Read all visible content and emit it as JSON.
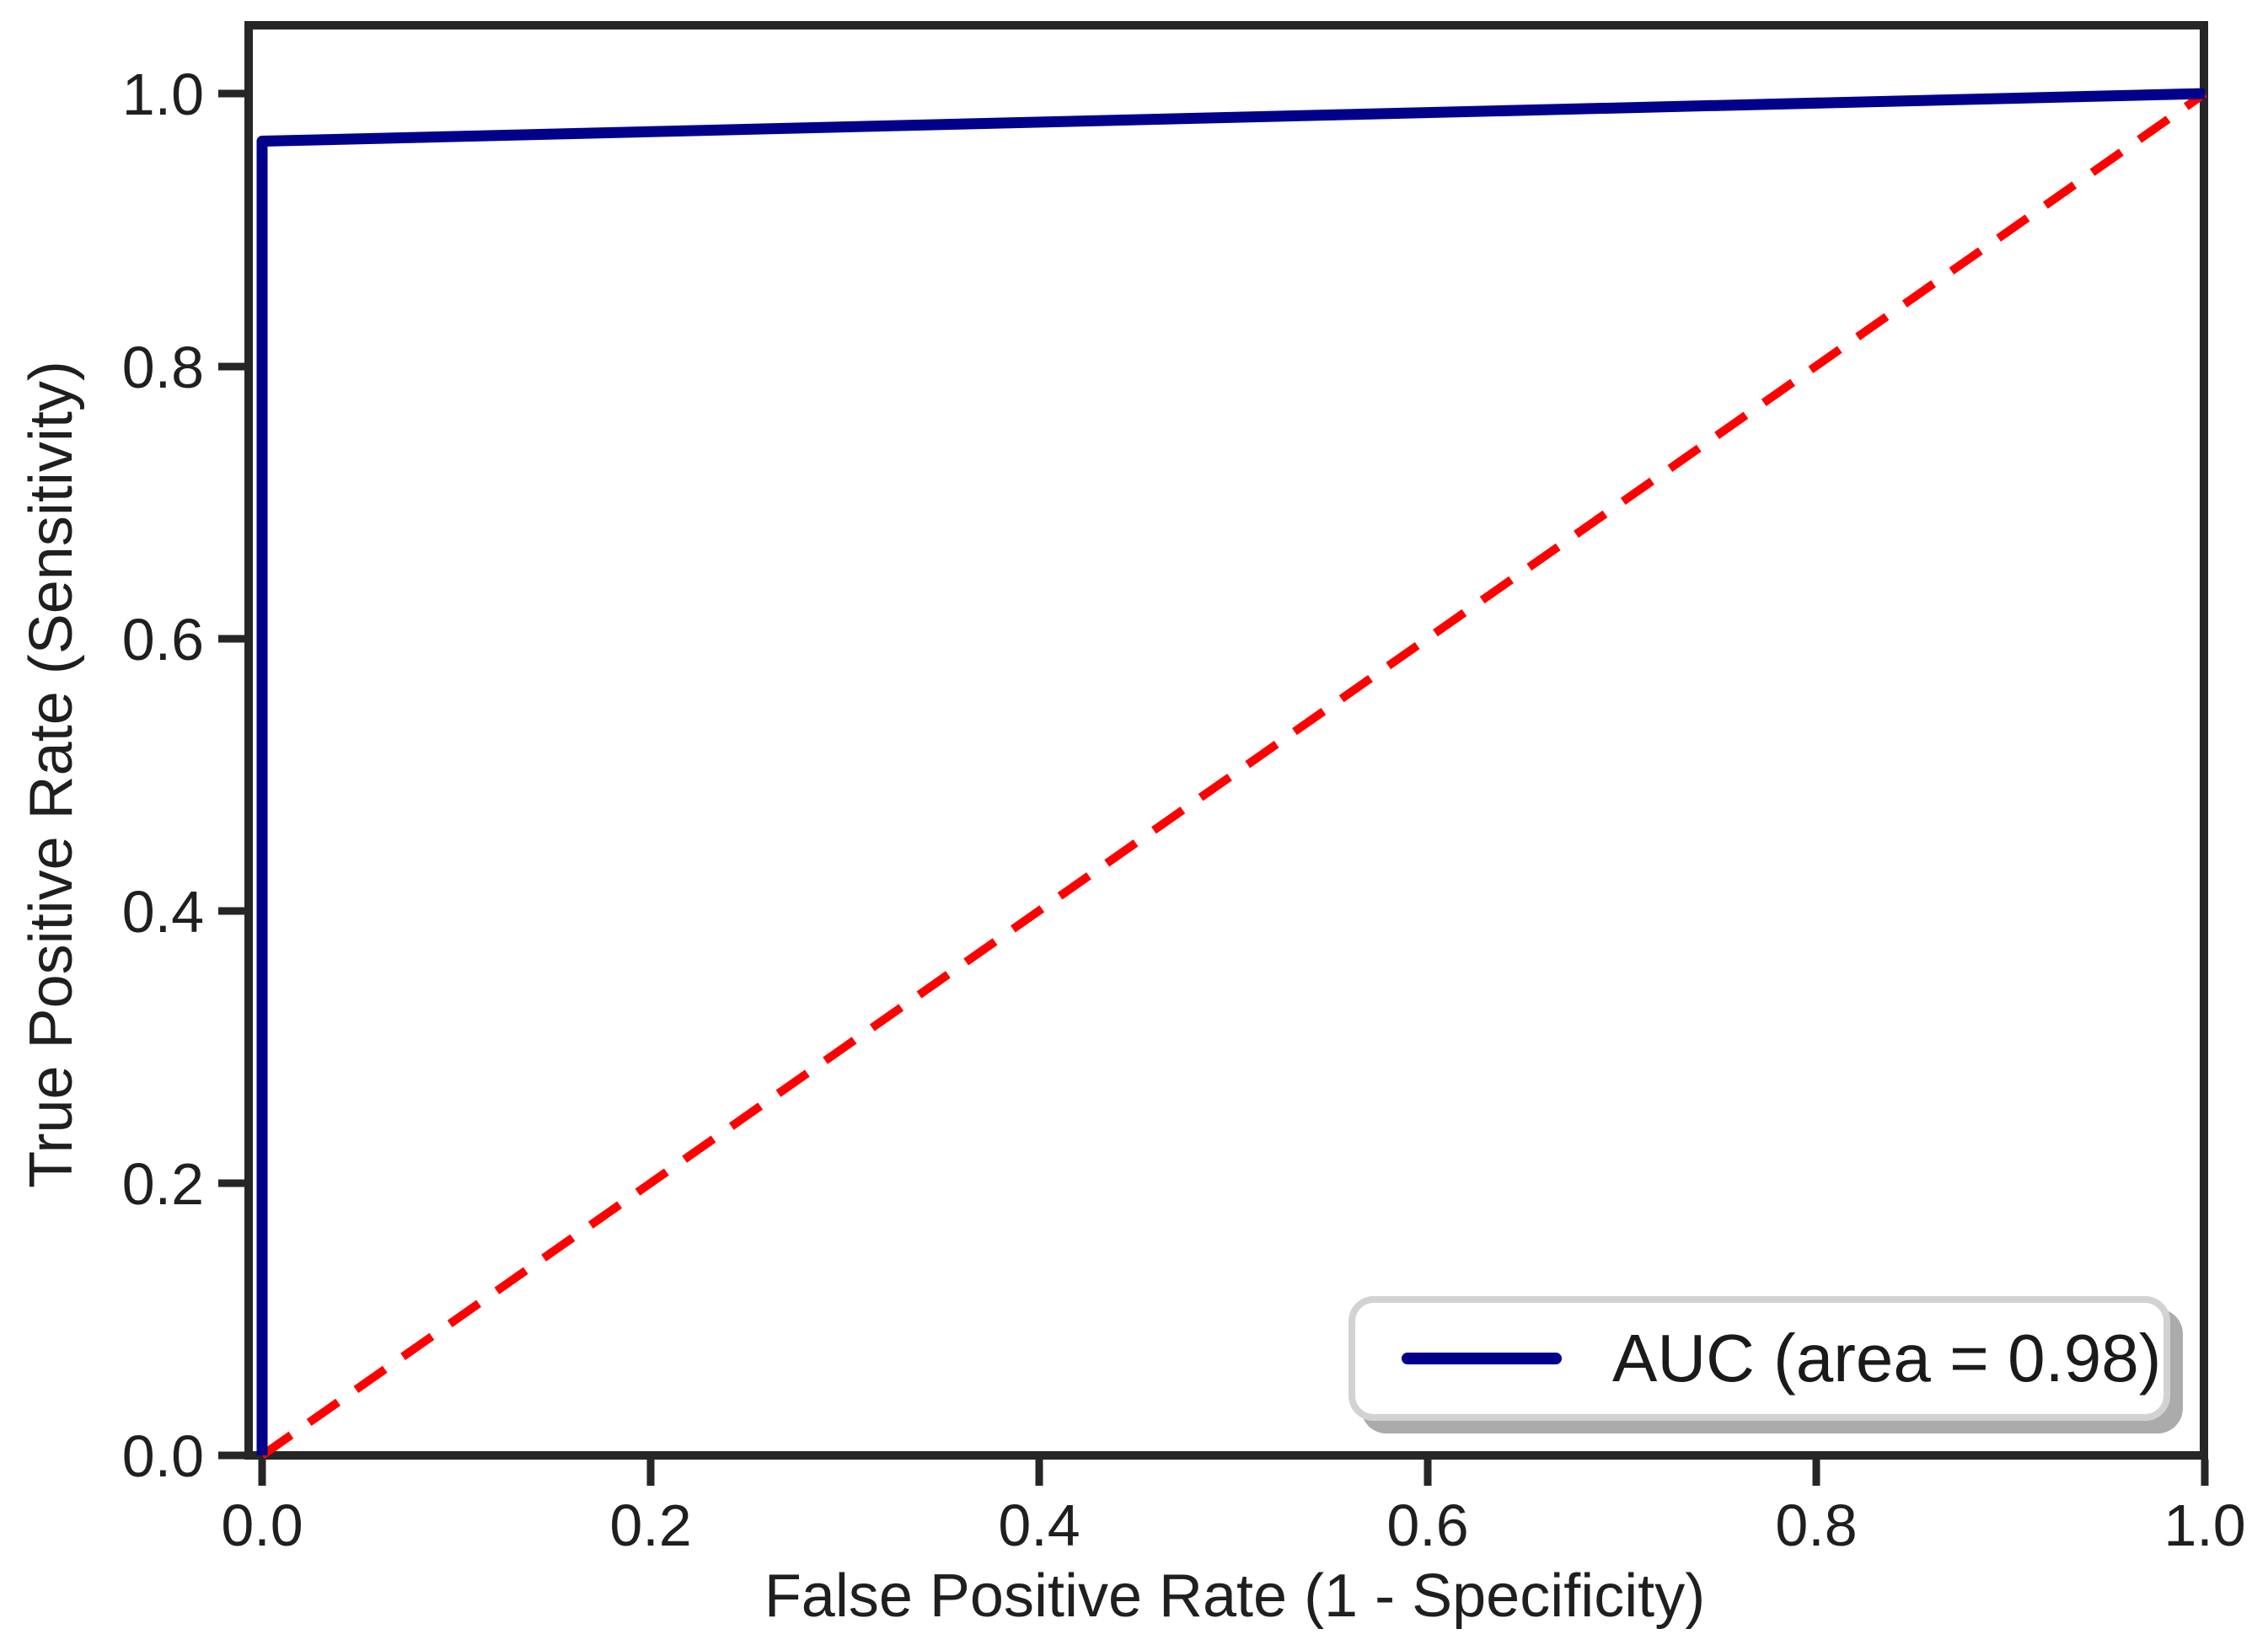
{
  "figure": {
    "background": "#ffffff",
    "spine_color": "#262626",
    "text_color": "#1f1f1f"
  },
  "chart_data": {
    "type": "line",
    "title": "",
    "xlabel": "False Positive Rate (1 - Specificity)",
    "ylabel": "True Positive Rate (Sensitivity)",
    "xlim": [
      -0.008,
      1.0
    ],
    "ylim": [
      0.0,
      1.05
    ],
    "grid": false,
    "xticks": [
      0.0,
      0.2,
      0.4,
      0.6,
      0.8,
      1.0
    ],
    "yticks": [
      0.0,
      0.2,
      0.4,
      0.6,
      0.8,
      1.0
    ],
    "xtick_labels": [
      "0.0",
      "0.2",
      "0.4",
      "0.6",
      "0.8",
      "1.0"
    ],
    "ytick_labels": [
      "0.0",
      "0.2",
      "0.4",
      "0.6",
      "0.8",
      "1.0"
    ],
    "auc": 0.98,
    "series": [
      {
        "name": "ROC curve",
        "color": "#00008b",
        "style": "solid",
        "linewidth": 13,
        "points": [
          [
            0.0,
            0.0
          ],
          [
            0.0,
            0.965
          ],
          [
            1.0,
            1.0
          ]
        ]
      },
      {
        "name": "chance diagonal",
        "color": "#ff0000",
        "style": "dashed",
        "linewidth": 10,
        "points": [
          [
            0.0,
            0.0
          ],
          [
            1.0,
            1.0
          ]
        ]
      }
    ],
    "legend": {
      "position": "lower right",
      "entries": [
        {
          "label": "AUC (area = 0.98)",
          "color": "#00008b",
          "style": "solid"
        }
      ]
    }
  }
}
